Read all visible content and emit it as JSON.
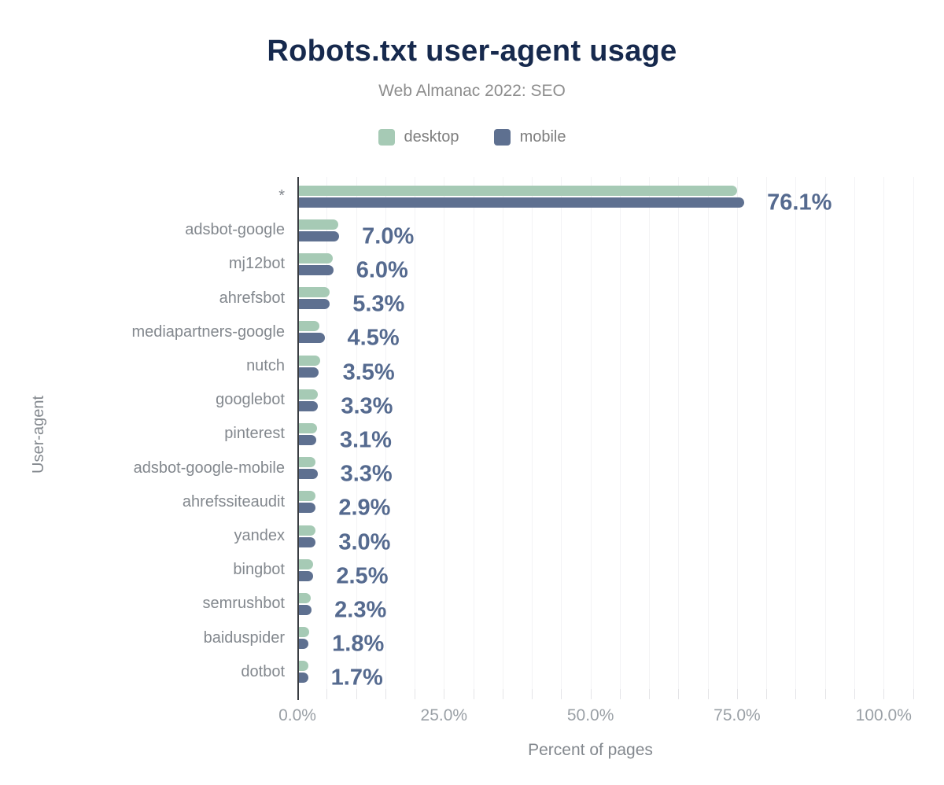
{
  "chart_data": {
    "type": "bar",
    "orientation": "horizontal",
    "title": "Robots.txt user-agent usage",
    "subtitle": "Web Almanac 2022: SEO",
    "xlabel": "Percent of pages",
    "ylabel": "User-agent",
    "legend_position": "top",
    "grid": "vertical-minor",
    "xlim": [
      0,
      106
    ],
    "minor_grid": {
      "step": 5,
      "max": 105
    },
    "xticks": [
      {
        "value": 0,
        "label": "0.0%"
      },
      {
        "value": 25,
        "label": "25.0%"
      },
      {
        "value": 50,
        "label": "50.0%"
      },
      {
        "value": 75,
        "label": "75.0%"
      },
      {
        "value": 100,
        "label": "100.0%"
      }
    ],
    "categories": [
      "*",
      "adsbot-google",
      "mj12bot",
      "ahrefsbot",
      "mediapartners-google",
      "nutch",
      "googlebot",
      "pinterest",
      "adsbot-google-mobile",
      "ahrefssiteaudit",
      "yandex",
      "bingbot",
      "semrushbot",
      "baiduspider",
      "dotbot"
    ],
    "series": [
      {
        "name": "desktop",
        "color": "#a6cab5",
        "values": [
          74.9,
          6.8,
          5.9,
          5.4,
          3.6,
          3.7,
          3.4,
          3.2,
          2.9,
          3.0,
          3.0,
          2.6,
          2.2,
          1.9,
          1.7
        ]
      },
      {
        "name": "mobile",
        "color": "#5e7090",
        "values": [
          76.1,
          7.0,
          6.0,
          5.3,
          4.5,
          3.5,
          3.3,
          3.1,
          3.3,
          2.9,
          3.0,
          2.5,
          2.3,
          1.8,
          1.7
        ]
      }
    ],
    "value_labels": [
      "76.1%",
      "7.0%",
      "6.0%",
      "5.3%",
      "4.5%",
      "3.5%",
      "3.3%",
      "3.1%",
      "3.3%",
      "2.9%",
      "3.0%",
      "2.5%",
      "2.3%",
      "1.8%",
      "1.7%"
    ],
    "value_label_series": "mobile"
  },
  "style": {
    "desktop_color": "#a6cab5",
    "mobile_color": "#5e7090",
    "title_color": "#16294d",
    "subtitle_color": "#8d8d8d",
    "legend_text_color": "#7d7d7d",
    "category_label_color": "#83888e",
    "tick_label_color": "#9aa0a6",
    "axis_title_color": "#83888e",
    "value_label_color": "#556a8f",
    "axis_line_color": "#3a3d42",
    "gridline_color": "#f3f3f5",
    "background": "#ffffff"
  }
}
